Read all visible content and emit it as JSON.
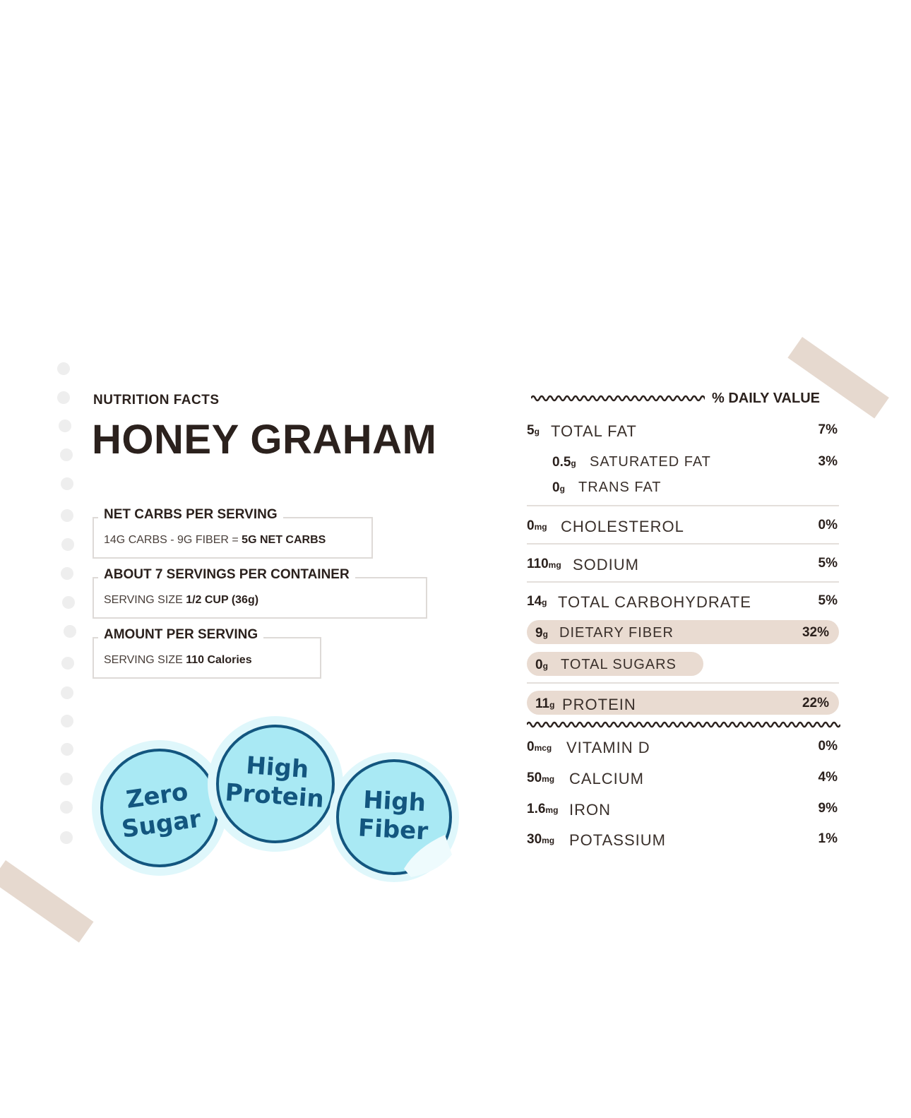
{
  "header": {
    "eyebrow": "NUTRITION FACTS",
    "title": "HONEY GRAHAM"
  },
  "boxes": {
    "net_carbs": {
      "title": "NET CARBS PER SERVING",
      "formula": "14G CARBS - 9G FIBER = ",
      "result": "5G NET CARBS"
    },
    "servings": {
      "title": "ABOUT 7 SERVINGS PER CONTAINER",
      "label": "SERVING SIZE ",
      "value": "1/2 CUP (36g)"
    },
    "amount": {
      "title": "AMOUNT PER SERVING",
      "label": "SERVING SIZE ",
      "value": "110 Calories"
    }
  },
  "badges": {
    "zero_sugar": [
      "Zero",
      "Sugar"
    ],
    "high_protein": [
      "High",
      "Protein"
    ],
    "high_fiber": [
      "High",
      "Fiber"
    ]
  },
  "daily_value_header": "% DAILY VALUE",
  "nutrients": {
    "total_fat": {
      "amount": "5",
      "unit": "g",
      "name": "TOTAL FAT",
      "pct": "7%"
    },
    "saturated_fat": {
      "amount": "0.5",
      "unit": "g",
      "name": "SATURATED FAT",
      "pct": "3%"
    },
    "trans_fat": {
      "amount": "0",
      "unit": "g",
      "name": "TRANS FAT"
    },
    "cholesterol": {
      "amount": "0",
      "unit": "mg",
      "name": "CHOLESTEROL",
      "pct": "0%"
    },
    "sodium": {
      "amount": "110",
      "unit": "mg",
      "name": "SODIUM",
      "pct": "5%"
    },
    "total_carbohydrate": {
      "amount": "14",
      "unit": "g",
      "name": "TOTAL CARBOHYDRATE",
      "pct": "5%"
    },
    "dietary_fiber": {
      "amount": "9",
      "unit": "g",
      "name": "DIETARY FIBER",
      "pct": "32%"
    },
    "total_sugars": {
      "amount": "0",
      "unit": "g",
      "name": "TOTAL SUGARS"
    },
    "protein": {
      "amount": "11",
      "unit": "g",
      "name": "PROTEIN",
      "pct": "22%"
    },
    "vitamin_d": {
      "amount": "0",
      "unit": "mcg",
      "name": "VITAMIN D",
      "pct": "0%"
    },
    "calcium": {
      "amount": "50",
      "unit": "mg",
      "name": "CALCIUM",
      "pct": "4%"
    },
    "iron": {
      "amount": "1.6",
      "unit": "mg",
      "name": "IRON",
      "pct": "9%"
    },
    "potassium": {
      "amount": "30",
      "unit": "mg",
      "name": "POTASSIUM",
      "pct": "1%"
    }
  },
  "colors": {
    "text": "#2b211d",
    "pill": "#e9dbd1",
    "tape": "#e6d9cf",
    "badge_fill": "#a9e9f4",
    "badge_ring": "#13567f"
  }
}
